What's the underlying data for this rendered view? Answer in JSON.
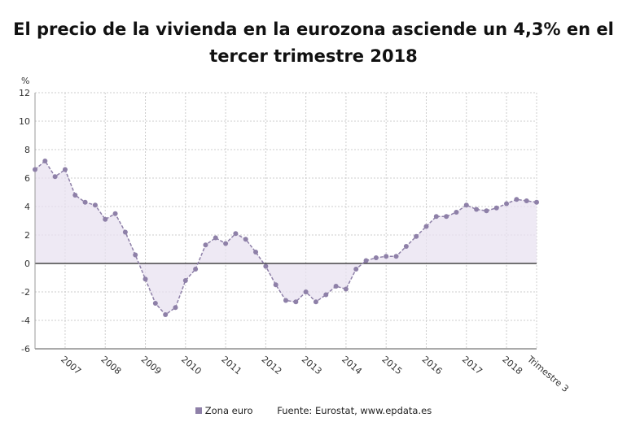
{
  "header": {
    "title": "El precio de la vivienda en la eurozona asciende un 4,3% en el tercer trimestre 2018"
  },
  "legend": {
    "series_label": "Zona euro"
  },
  "source": {
    "text": "Fuente: Eurostat, www.epdata.es"
  },
  "colors": {
    "line": "#8e80a8",
    "area": "#e8e2f0",
    "grid": "#cccccc",
    "zero": "#222222"
  },
  "chart_data": {
    "type": "area",
    "title": "El precio de la vivienda en la eurozona asciende un 4,3% en el tercer trimestre 2018",
    "ylabel": "%",
    "xlabel": "",
    "ylim": [
      -6,
      12
    ],
    "yticks": [
      -6,
      -4,
      -2,
      0,
      2,
      4,
      6,
      8,
      10,
      12
    ],
    "grid": true,
    "legend_position": "bottom",
    "x_tick_labels": [
      "2007",
      "2008",
      "2009",
      "2010",
      "2011",
      "2012",
      "2013",
      "2014",
      "2015",
      "2016",
      "2017",
      "2018",
      "Trimestre 3"
    ],
    "x_tick_label_index": [
      3.5,
      7.5,
      11.5,
      15.5,
      19.5,
      23.5,
      27.5,
      31.5,
      35.5,
      39.5,
      43.5,
      47.5,
      50
    ],
    "x_tick_index": [
      3,
      7,
      11,
      15,
      19,
      23,
      27,
      31,
      35,
      39,
      43,
      47,
      50
    ],
    "series": [
      {
        "name": "Zona euro",
        "values": [
          6.6,
          7.2,
          6.1,
          6.6,
          4.8,
          4.3,
          4.1,
          3.1,
          3.5,
          2.2,
          0.6,
          -1.1,
          -2.8,
          -3.6,
          -3.1,
          -1.2,
          -0.4,
          1.3,
          1.8,
          1.4,
          2.1,
          1.7,
          0.8,
          -0.2,
          -1.5,
          -2.6,
          -2.7,
          -2.0,
          -2.7,
          -2.2,
          -1.6,
          -1.8,
          -0.4,
          0.2,
          0.4,
          0.5,
          0.5,
          1.2,
          1.9,
          2.6,
          3.3,
          3.3,
          3.6,
          4.1,
          3.8,
          3.7,
          3.9,
          4.2,
          4.5,
          4.4,
          4.3
        ]
      }
    ]
  }
}
